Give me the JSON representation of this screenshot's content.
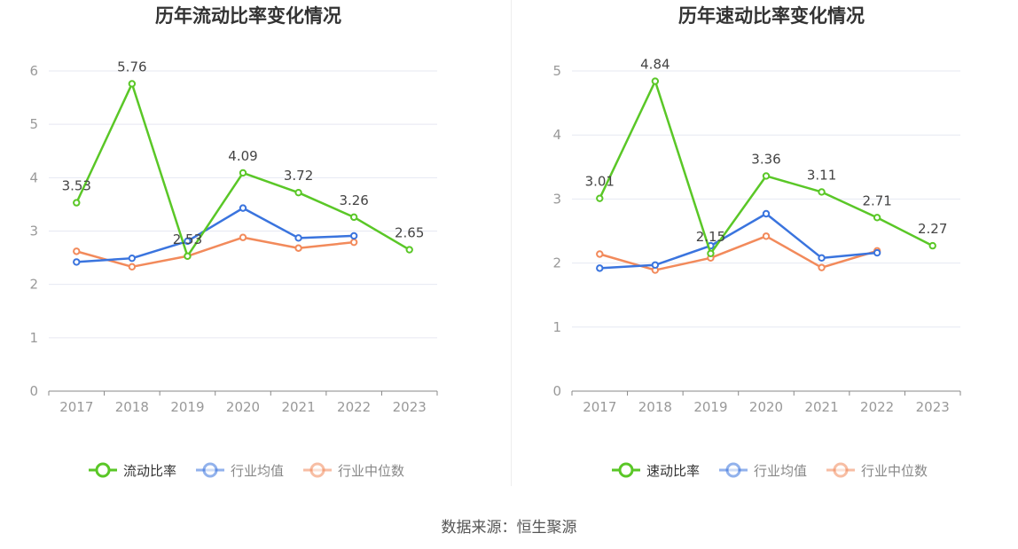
{
  "source_text": "数据来源：恒生聚源",
  "colors": {
    "main": "#5ac727",
    "avg": "#3a74de",
    "median": "#f28a5b",
    "grid": "#e6e8f2",
    "axis": "#888888",
    "tick_text": "#999999",
    "label_text": "#444444"
  },
  "chart_data": [
    {
      "type": "line",
      "title": "历年流动比率变化情况",
      "categories": [
        "2017",
        "2018",
        "2019",
        "2020",
        "2021",
        "2022",
        "2023"
      ],
      "ylim": [
        0,
        6
      ],
      "yticks": [
        "0",
        "1",
        "2",
        "3",
        "4",
        "5",
        "6"
      ],
      "grid": true,
      "legend_position": "bottom",
      "series": [
        {
          "name": "流动比率",
          "color_key": "main",
          "labeled": true,
          "values": [
            3.53,
            5.76,
            2.53,
            4.09,
            3.72,
            3.26,
            2.65
          ],
          "labels": [
            "3.53",
            "5.76",
            "2.53",
            "4.09",
            "3.72",
            "3.26",
            "2.65"
          ]
        },
        {
          "name": "行业均值",
          "color_key": "avg",
          "labeled": false,
          "values": [
            2.42,
            2.49,
            2.81,
            3.43,
            2.87,
            2.91,
            null
          ]
        },
        {
          "name": "行业中位数",
          "color_key": "median",
          "labeled": false,
          "values": [
            2.62,
            2.33,
            2.53,
            2.88,
            2.68,
            2.79,
            null
          ]
        }
      ]
    },
    {
      "type": "line",
      "title": "历年速动比率变化情况",
      "categories": [
        "2017",
        "2018",
        "2019",
        "2020",
        "2021",
        "2022",
        "2023"
      ],
      "ylim": [
        0,
        5
      ],
      "yticks": [
        "0",
        "1",
        "2",
        "3",
        "4",
        "5"
      ],
      "grid": true,
      "legend_position": "bottom",
      "series": [
        {
          "name": "速动比率",
          "color_key": "main",
          "labeled": true,
          "values": [
            3.01,
            4.84,
            2.15,
            3.36,
            3.11,
            2.71,
            2.27
          ],
          "labels": [
            "3.01",
            "4.84",
            "2.15",
            "3.36",
            "3.11",
            "2.71",
            "2.27"
          ]
        },
        {
          "name": "行业均值",
          "color_key": "avg",
          "labeled": false,
          "values": [
            1.92,
            1.97,
            2.27,
            2.77,
            2.08,
            2.16,
            null
          ]
        },
        {
          "name": "行业中位数",
          "color_key": "median",
          "labeled": false,
          "values": [
            2.14,
            1.89,
            2.08,
            2.42,
            1.93,
            2.19,
            null
          ]
        }
      ]
    }
  ]
}
